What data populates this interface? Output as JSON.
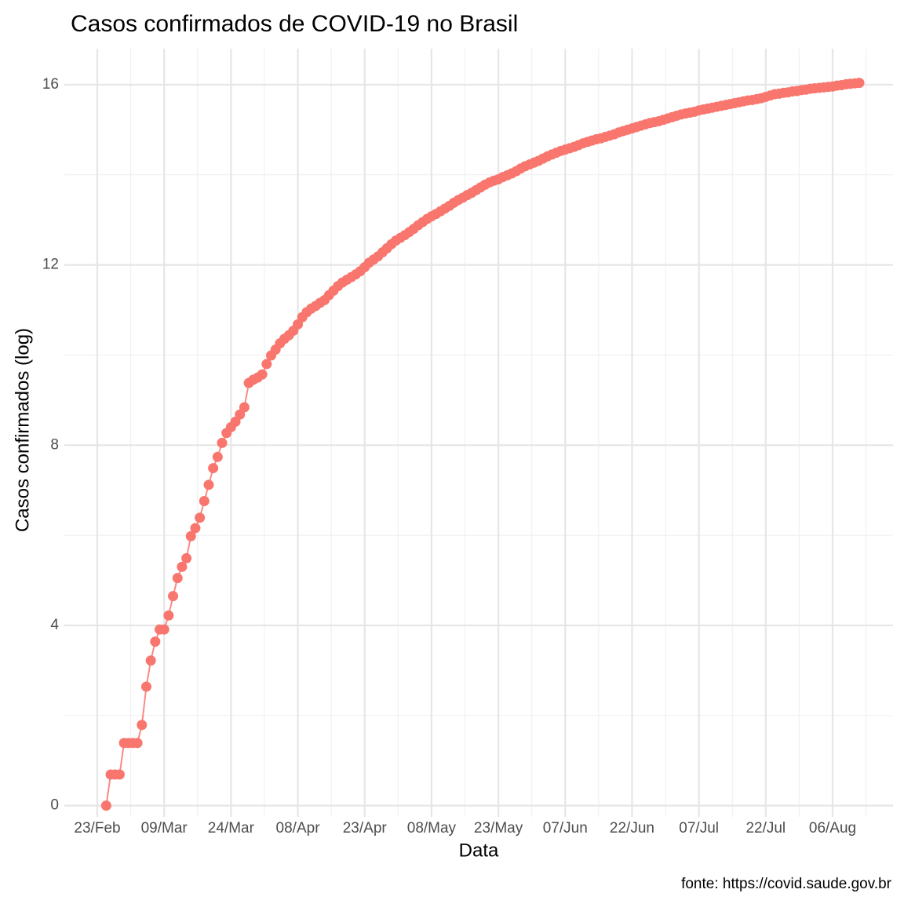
{
  "chart_data": {
    "type": "line",
    "title": "Casos confirmados de COVID-19 no Brasil",
    "x_label": "Data",
    "y_label": "Casos confirmados (log)",
    "caption": "fonte: https://covid.saude.gov.br",
    "color": "#F8766D",
    "grid": true,
    "ylim": [
      -0.25,
      16.8
    ],
    "yticks": [
      0,
      4,
      8,
      12,
      16
    ],
    "xticks": [
      "23/Feb",
      "09/Mar",
      "24/Mar",
      "08/Apr",
      "23/Apr",
      "08/May",
      "23/May",
      "07/Jun",
      "22/Jun",
      "07/Jul",
      "22/Jul",
      "06/Aug"
    ],
    "x": [
      "25/Feb",
      "26/Feb",
      "27/Feb",
      "28/Feb",
      "29/Feb",
      "01/Mar",
      "02/Mar",
      "03/Mar",
      "04/Mar",
      "05/Mar",
      "06/Mar",
      "07/Mar",
      "08/Mar",
      "09/Mar",
      "10/Mar",
      "11/Mar",
      "12/Mar",
      "13/Mar",
      "14/Mar",
      "15/Mar",
      "16/Mar",
      "17/Mar",
      "18/Mar",
      "19/Mar",
      "20/Mar",
      "21/Mar",
      "22/Mar",
      "23/Mar",
      "24/Mar",
      "25/Mar",
      "26/Mar",
      "27/Mar",
      "28/Mar",
      "29/Mar",
      "30/Mar",
      "31/Mar",
      "01/Apr",
      "02/Apr",
      "03/Apr",
      "04/Apr",
      "05/Apr",
      "06/Apr",
      "07/Apr",
      "08/Apr",
      "09/Apr",
      "10/Apr",
      "11/Apr",
      "12/Apr",
      "13/Apr",
      "14/Apr",
      "15/Apr",
      "16/Apr",
      "17/Apr",
      "18/Apr",
      "19/Apr",
      "20/Apr",
      "21/Apr",
      "22/Apr",
      "23/Apr",
      "24/Apr",
      "25/Apr",
      "26/Apr",
      "27/Apr",
      "28/Apr",
      "29/Apr",
      "30/Apr",
      "01/May",
      "02/May",
      "03/May",
      "04/May",
      "05/May",
      "06/May",
      "07/May",
      "08/May",
      "09/May",
      "10/May",
      "11/May",
      "12/May",
      "13/May",
      "14/May",
      "15/May",
      "16/May",
      "17/May",
      "18/May",
      "19/May",
      "20/May",
      "21/May",
      "22/May",
      "23/May",
      "24/May",
      "25/May",
      "26/May",
      "27/May",
      "28/May",
      "29/May",
      "30/May",
      "31/May",
      "01/Jun",
      "02/Jun",
      "03/Jun",
      "04/Jun",
      "05/Jun",
      "06/Jun",
      "07/Jun",
      "08/Jun",
      "09/Jun",
      "10/Jun",
      "11/Jun",
      "12/Jun",
      "13/Jun",
      "14/Jun",
      "15/Jun",
      "16/Jun",
      "17/Jun",
      "18/Jun",
      "19/Jun",
      "20/Jun",
      "21/Jun",
      "22/Jun",
      "23/Jun",
      "24/Jun",
      "25/Jun",
      "26/Jun",
      "27/Jun",
      "28/Jun",
      "29/Jun",
      "30/Jun",
      "01/Jul",
      "02/Jul",
      "03/Jul",
      "04/Jul",
      "05/Jul",
      "06/Jul",
      "07/Jul",
      "08/Jul",
      "09/Jul",
      "10/Jul",
      "11/Jul",
      "12/Jul",
      "13/Jul",
      "14/Jul",
      "15/Jul",
      "16/Jul",
      "17/Jul",
      "18/Jul",
      "19/Jul",
      "20/Jul",
      "21/Jul",
      "22/Jul",
      "23/Jul",
      "24/Jul",
      "25/Jul",
      "26/Jul",
      "27/Jul",
      "28/Jul",
      "29/Jul",
      "30/Jul",
      "31/Jul",
      "01/Aug",
      "02/Aug",
      "03/Aug",
      "04/Aug",
      "05/Aug",
      "06/Aug",
      "07/Aug",
      "08/Aug",
      "09/Aug",
      "10/Aug",
      "11/Aug",
      "12/Aug"
    ],
    "values": [
      0,
      0.69,
      0.69,
      0.69,
      1.39,
      1.39,
      1.39,
      1.39,
      1.79,
      2.64,
      3.22,
      3.64,
      3.91,
      3.91,
      4.22,
      4.65,
      5.05,
      5.3,
      5.49,
      5.98,
      6.16,
      6.39,
      6.76,
      7.12,
      7.49,
      7.74,
      8.05,
      8.27,
      8.4,
      8.52,
      8.68,
      8.84,
      9.38,
      9.45,
      9.5,
      9.57,
      9.8,
      9.99,
      10.12,
      10.26,
      10.36,
      10.44,
      10.54,
      10.68,
      10.84,
      10.95,
      11.03,
      11.09,
      11.16,
      11.22,
      11.33,
      11.43,
      11.53,
      11.61,
      11.67,
      11.73,
      11.79,
      11.86,
      11.95,
      12.05,
      12.12,
      12.19,
      12.28,
      12.37,
      12.46,
      12.54,
      12.6,
      12.66,
      12.73,
      12.8,
      12.88,
      12.95,
      13.02,
      13.08,
      13.13,
      13.19,
      13.25,
      13.31,
      13.38,
      13.44,
      13.49,
      13.55,
      13.6,
      13.66,
      13.72,
      13.78,
      13.83,
      13.87,
      13.9,
      13.95,
      13.99,
      14.03,
      14.08,
      14.14,
      14.19,
      14.23,
      14.27,
      14.31,
      14.36,
      14.41,
      14.45,
      14.49,
      14.53,
      14.56,
      14.59,
      14.62,
      14.66,
      14.7,
      14.73,
      14.76,
      14.79,
      14.81,
      14.84,
      14.87,
      14.9,
      14.94,
      14.97,
      15.0,
      15.03,
      15.06,
      15.09,
      15.12,
      15.15,
      15.17,
      15.19,
      15.22,
      15.25,
      15.28,
      15.31,
      15.34,
      15.36,
      15.38,
      15.4,
      15.43,
      15.45,
      15.47,
      15.49,
      15.51,
      15.53,
      15.55,
      15.57,
      15.59,
      15.61,
      15.63,
      15.65,
      15.66,
      15.68,
      15.7,
      15.73,
      15.76,
      15.79,
      15.8,
      15.82,
      15.83,
      15.85,
      15.86,
      15.88,
      15.89,
      15.91,
      15.92,
      15.93,
      15.94,
      15.95,
      15.96,
      15.98,
      15.99,
      16.01,
      16.02,
      16.03,
      16.04
    ]
  }
}
